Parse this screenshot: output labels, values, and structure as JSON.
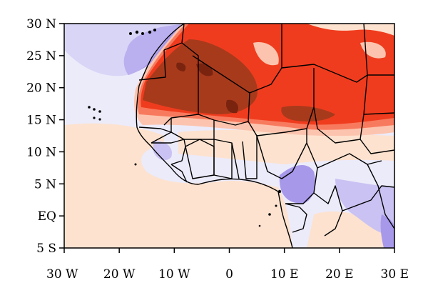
{
  "map": {
    "extent": {
      "lon": [
        -30,
        30
      ],
      "lat": [
        -5,
        30
      ]
    },
    "y_ticks": [
      {
        "value": 30,
        "label": "30 N"
      },
      {
        "value": 25,
        "label": "25 N"
      },
      {
        "value": 20,
        "label": "20 N"
      },
      {
        "value": 15,
        "label": "15 N"
      },
      {
        "value": 10,
        "label": "10 N"
      },
      {
        "value": 5,
        "label": "5 N"
      },
      {
        "value": 0,
        "label": "EQ"
      },
      {
        "value": -5,
        "label": "5 S"
      }
    ],
    "x_ticks": [
      {
        "value": -30,
        "label": "30 W"
      },
      {
        "value": -20,
        "label": "20 W"
      },
      {
        "value": -10,
        "label": "10 W"
      },
      {
        "value": 0,
        "label": "0"
      },
      {
        "value": 10,
        "label": "10 E"
      },
      {
        "value": 20,
        "label": "20 E"
      },
      {
        "value": 30,
        "label": "30 E"
      }
    ],
    "colors": {
      "strong_positive": "#a83a1c",
      "positive": "#f03c1e",
      "moderate_positive": "#f87a5e",
      "light_positive": "#fcc4ae",
      "weak_positive": "#fde2cf",
      "weak_negative": "#ecebfa",
      "light_negative": "#c9c2f2",
      "moderate_negative": "#a898ea",
      "borders": "#000000"
    }
  }
}
